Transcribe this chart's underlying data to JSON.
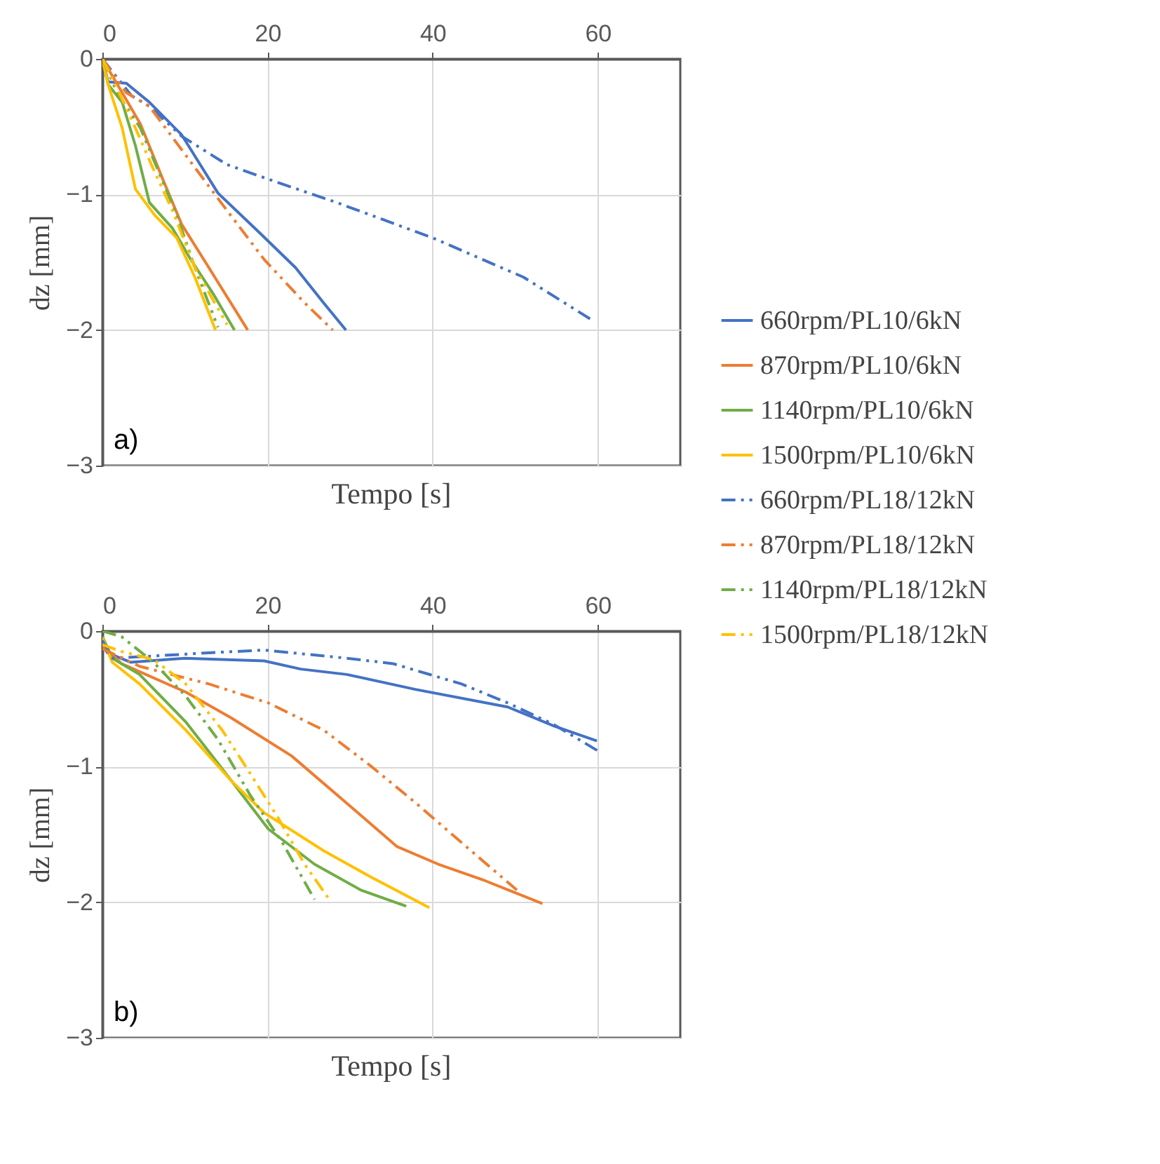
{
  "chart_data": [
    {
      "type": "line",
      "xlabel": "Tempo [s]",
      "ylabel": "dz [mm]",
      "xlim": [
        0,
        70
      ],
      "xticks": [
        0,
        20,
        40,
        60
      ],
      "ylim": [
        -3,
        0
      ],
      "yticks": [
        0,
        -1,
        -2,
        -3
      ],
      "grid": true,
      "legend": "right",
      "marker": "none",
      "annotations": [
        "a)"
      ],
      "series": [
        {
          "name": "660rpm/PL10/6kN",
          "color": "#4472c4",
          "line_style": "solid",
          "x": [
            0,
            0.7,
            2.9,
            5.7,
            9.6,
            14,
            19,
            23.4,
            26.8,
            29.5
          ],
          "values": [
            0,
            -0.17,
            -0.18,
            -0.32,
            -0.56,
            -0.99,
            -1.28,
            -1.54,
            -1.8,
            -2
          ]
        },
        {
          "name": "870rpm/PL10/6kN",
          "color": "#ed7d31",
          "line_style": "solid",
          "x": [
            0,
            2.4,
            4.6,
            7.4,
            9.6,
            12.9,
            17.6
          ],
          "values": [
            0,
            -0.25,
            -0.48,
            -0.9,
            -1.22,
            -1.54,
            -2
          ]
        },
        {
          "name": "1140rpm/PL10/6kN",
          "color": "#70ad47",
          "line_style": "solid",
          "x": [
            0,
            0.7,
            2.4,
            4,
            5.7,
            8.5,
            10.7,
            13.5,
            16
          ],
          "values": [
            0,
            -0.19,
            -0.32,
            -0.64,
            -1.06,
            -1.25,
            -1.48,
            -1.74,
            -2
          ]
        },
        {
          "name": "1500rpm/PL10/6kN",
          "color": "#ffc000",
          "line_style": "solid",
          "x": [
            0,
            0.7,
            2.4,
            4,
            6.3,
            9,
            11.2,
            13.7
          ],
          "values": [
            0,
            -0.19,
            -0.51,
            -0.96,
            -1.15,
            -1.32,
            -1.61,
            -2
          ]
        },
        {
          "name": "660rpm/PL18/12kN",
          "color": "#4472c4",
          "line_style": "dashed",
          "x": [
            0,
            3.5,
            5.7,
            9.6,
            15.1,
            20.7,
            28.4,
            40,
            51,
            59.4
          ],
          "values": [
            0,
            -0.27,
            -0.35,
            -0.57,
            -0.78,
            -0.9,
            -1.06,
            -1.32,
            -1.61,
            -1.93
          ]
        },
        {
          "name": "870rpm/PL18/12kN",
          "color": "#ed7d31",
          "line_style": "dashed",
          "x": [
            0,
            2.9,
            5.7,
            9.6,
            14,
            19.6,
            24.5,
            27.9
          ],
          "values": [
            0,
            -0.25,
            -0.35,
            -0.67,
            -1.03,
            -1.48,
            -1.8,
            -2
          ]
        },
        {
          "name": "1140rpm/PL18/12kN",
          "color": "#70ad47",
          "line_style": "dashed",
          "x": [
            0,
            1.8,
            4.6,
            6.8,
            9,
            11.2,
            14
          ],
          "values": [
            0,
            -0.25,
            -0.51,
            -0.83,
            -1.15,
            -1.54,
            -1.98
          ]
        },
        {
          "name": "1500rpm/PL18/12kN",
          "color": "#ffc000",
          "line_style": "dashed",
          "x": [
            0,
            1.8,
            4,
            6.3,
            8.5,
            11.2,
            15.1
          ],
          "values": [
            0,
            -0.22,
            -0.51,
            -0.83,
            -1.12,
            -1.54,
            -1.96
          ]
        }
      ]
    },
    {
      "type": "line",
      "xlabel": "Tempo [s]",
      "ylabel": "dz [mm]",
      "xlim": [
        0,
        70
      ],
      "xticks": [
        0,
        20,
        40,
        60
      ],
      "ylim": [
        -3,
        0
      ],
      "yticks": [
        0,
        -1,
        -2,
        -3
      ],
      "grid": true,
      "marker": "none",
      "annotations": [
        "b)"
      ],
      "series": [
        {
          "color": "#4472c4",
          "line_style": "solid",
          "x": [
            0,
            0.6,
            3.4,
            10,
            19.6,
            24,
            29.6,
            37.9,
            49.1,
            54.7,
            59.9
          ],
          "values": [
            -0.1,
            -0.16,
            -0.23,
            -0.2,
            -0.22,
            -0.28,
            -0.32,
            -0.43,
            -0.56,
            -0.7,
            -0.81
          ]
        },
        {
          "color": "#ed7d31",
          "line_style": "solid",
          "x": [
            0,
            2.3,
            10.1,
            15.6,
            22.9,
            29.6,
            35.7,
            40.7,
            46.3,
            53.3
          ],
          "values": [
            -0.1,
            -0.24,
            -0.45,
            -0.64,
            -0.92,
            -1.27,
            -1.59,
            -1.72,
            -1.84,
            -2.01
          ]
        },
        {
          "color": "#70ad47",
          "line_style": "solid",
          "x": [
            0,
            1.2,
            4.5,
            10.1,
            15.7,
            20.1,
            25.7,
            31.3,
            36.8
          ],
          "values": [
            -0.04,
            -0.2,
            -0.32,
            -0.67,
            -1.11,
            -1.46,
            -1.72,
            -1.91,
            -2.03
          ]
        },
        {
          "color": "#ffc000",
          "line_style": "solid",
          "x": [
            0,
            1.2,
            4.5,
            10.1,
            15.7,
            19.6,
            26.8,
            32.4,
            39.6
          ],
          "values": [
            -0.05,
            -0.23,
            -0.39,
            -0.73,
            -1.11,
            -1.34,
            -1.62,
            -1.81,
            -2.04
          ]
        },
        {
          "color": "#4472c4",
          "line_style": "dashed",
          "x": [
            0,
            1.2,
            7.3,
            12.9,
            19.6,
            29.6,
            35.2,
            43.5,
            49.1,
            54.7,
            60.2
          ],
          "values": [
            -0.07,
            -0.2,
            -0.18,
            -0.16,
            -0.14,
            -0.2,
            -0.24,
            -0.39,
            -0.53,
            -0.69,
            -0.89
          ]
        },
        {
          "color": "#ed7d31",
          "line_style": "dashed",
          "x": [
            0,
            4.5,
            12.9,
            20.1,
            26.8,
            32.4,
            38,
            43.5,
            50.2
          ],
          "values": [
            -0.13,
            -0.26,
            -0.39,
            -0.53,
            -0.73,
            -0.99,
            -1.27,
            -1.56,
            -1.91
          ]
        },
        {
          "color": "#70ad47",
          "line_style": "dashed",
          "x": [
            0,
            2.3,
            6.2,
            10.1,
            14,
            17.9,
            21.8,
            25.7
          ],
          "values": [
            0,
            -0.04,
            -0.23,
            -0.48,
            -0.8,
            -1.21,
            -1.56,
            -1.98
          ]
        },
        {
          "color": "#ffc000",
          "line_style": "dashed",
          "x": [
            0,
            2.3,
            6.2,
            10.1,
            14.5,
            17.9,
            21.2,
            24.5,
            27.6
          ],
          "values": [
            -0.1,
            -0.15,
            -0.21,
            -0.39,
            -0.73,
            -1.05,
            -1.37,
            -1.72,
            -1.99
          ]
        }
      ]
    }
  ]
}
